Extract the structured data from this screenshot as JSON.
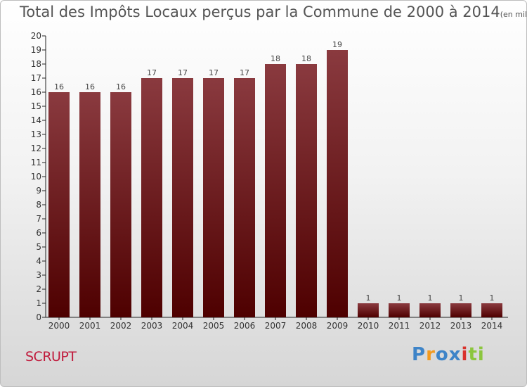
{
  "header": {
    "title": "Total des Impôts Locaux perçus par la Commune de 2000 à 2014",
    "unit": "(en milliers d'€)"
  },
  "commune": "SCRUPT",
  "logo": {
    "text": "Proxiti",
    "colors": [
      "#3e84c8",
      "#f39a1e",
      "#3e84c8",
      "#d9312b",
      "#8cc63e"
    ]
  },
  "colors": {
    "bar_top": "#8a3a3f",
    "bar_bottom": "#4e0000",
    "title": "#555555",
    "commune": "#c01a3c"
  },
  "chart_data": {
    "type": "bar",
    "title": "Total des Impôts Locaux perçus par la Commune de 2000 à 2014",
    "ylabel": "(en milliers d'€)",
    "xlabel": "",
    "categories": [
      "2000",
      "2001",
      "2002",
      "2003",
      "2004",
      "2005",
      "2006",
      "2007",
      "2008",
      "2009",
      "2010",
      "2011",
      "2012",
      "2013",
      "2014"
    ],
    "values": [
      16,
      16,
      16,
      17,
      17,
      17,
      17,
      18,
      18,
      19,
      1,
      1,
      1,
      1,
      1
    ],
    "ylim": [
      0,
      20
    ],
    "yticks": [
      0,
      1,
      2,
      3,
      4,
      5,
      6,
      7,
      8,
      9,
      10,
      11,
      12,
      13,
      14,
      15,
      16,
      17,
      18,
      19,
      20
    ],
    "data_labels": true,
    "grid": false
  }
}
